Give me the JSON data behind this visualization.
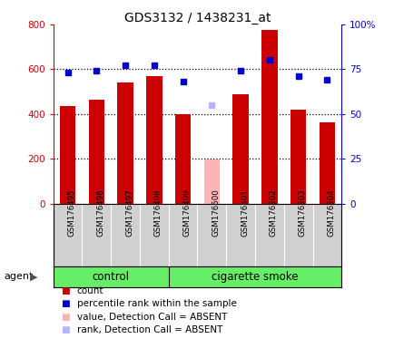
{
  "title": "GDS3132 / 1438231_at",
  "samples": [
    "GSM176495",
    "GSM176496",
    "GSM176497",
    "GSM176498",
    "GSM176499",
    "GSM176500",
    "GSM176501",
    "GSM176502",
    "GSM176503",
    "GSM176504"
  ],
  "bar_values": [
    435,
    462,
    542,
    568,
    400,
    197,
    490,
    775,
    420,
    362
  ],
  "bar_colors": [
    "#cc0000",
    "#cc0000",
    "#cc0000",
    "#cc0000",
    "#cc0000",
    "#ffb3b3",
    "#cc0000",
    "#cc0000",
    "#cc0000",
    "#cc0000"
  ],
  "rank_values": [
    73,
    74,
    77,
    77,
    68,
    55,
    74,
    80,
    71,
    69
  ],
  "rank_colors": [
    "#0000cc",
    "#0000cc",
    "#0000cc",
    "#0000cc",
    "#0000cc",
    "#b3b3ff",
    "#0000cc",
    "#0000cc",
    "#0000cc",
    "#0000cc"
  ],
  "ylim_left": [
    0,
    800
  ],
  "ylim_right": [
    0,
    100
  ],
  "yticks_left": [
    0,
    200,
    400,
    600,
    800
  ],
  "ytick_labels_left": [
    "0",
    "200",
    "400",
    "600",
    "800"
  ],
  "yticks_right": [
    0,
    25,
    50,
    75,
    100
  ],
  "ytick_labels_right": [
    "0",
    "25",
    "50",
    "75",
    "100%"
  ],
  "n_control": 4,
  "n_smoke": 6,
  "control_label": "control",
  "smoke_label": "cigarette smoke",
  "agent_label": "agent",
  "legend_items": [
    {
      "label": "count",
      "color": "#cc0000"
    },
    {
      "label": "percentile rank within the sample",
      "color": "#0000cc"
    },
    {
      "label": "value, Detection Call = ABSENT",
      "color": "#ffb3b3"
    },
    {
      "label": "rank, Detection Call = ABSENT",
      "color": "#b3b3ff"
    }
  ],
  "group_bg_color": "#66ee66",
  "tick_label_area_color": "#d0d0d0",
  "bar_width": 0.55,
  "plot_bg_color": "#ffffff",
  "left_axis_color": "#cc0000",
  "right_axis_color": "#0000cc",
  "grid_yticks": [
    200,
    400,
    600
  ],
  "dotted_line_color": "#000000"
}
